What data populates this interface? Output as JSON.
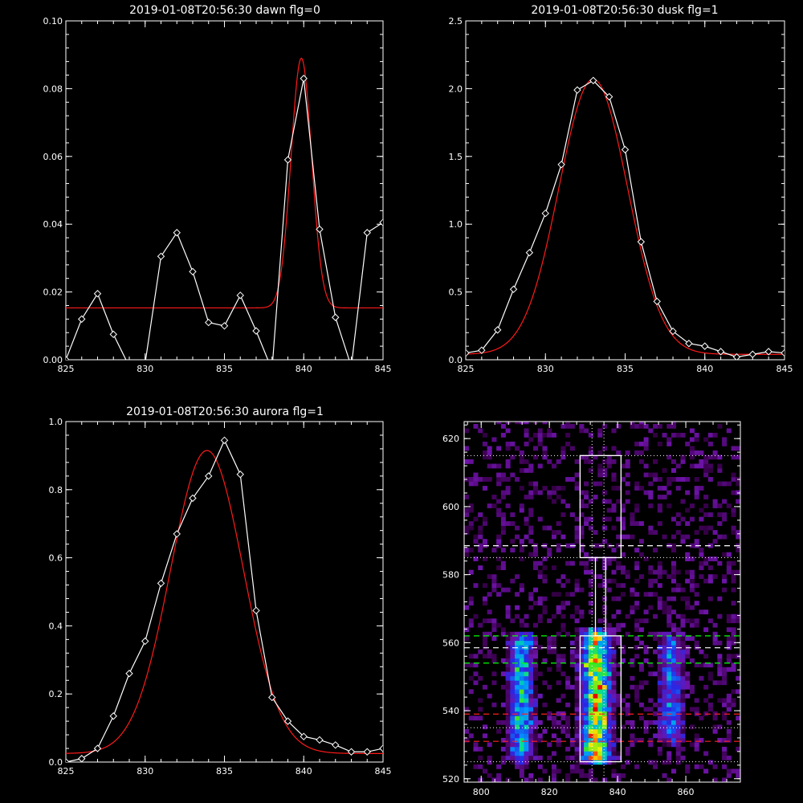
{
  "chart_data": [
    {
      "id": "dawn",
      "type": "line",
      "title": "2019-01-08T20:56:30 dawn flg=0",
      "xlim": [
        825,
        845
      ],
      "ylim": [
        0,
        0.1
      ],
      "xticks": [
        825,
        830,
        835,
        840,
        845
      ],
      "xticklabels": [
        "825",
        "830",
        "835",
        "840",
        "845"
      ],
      "yticks": [
        0,
        0.02,
        0.04,
        0.06,
        0.08,
        0.1
      ],
      "yticklabels": [
        "0.00",
        "0.02",
        "0.04",
        "0.06",
        "0.08",
        "0.10"
      ],
      "series": [
        {
          "style": "white-diamonds",
          "x": [
            825,
            826,
            827,
            828,
            829,
            830,
            831,
            832,
            833,
            834,
            835,
            836,
            837,
            838,
            839,
            840,
            841,
            842,
            843,
            844,
            845
          ],
          "y": [
            0.0,
            0.012,
            0.0195,
            0.0075,
            -0.002,
            -0.001,
            0.0305,
            0.0375,
            0.026,
            0.011,
            0.01,
            0.019,
            0.0085,
            -0.003,
            0.059,
            0.083,
            0.0385,
            0.0125,
            -0.002,
            0.0375,
            0.0405
          ]
        },
        {
          "style": "red-gaussian-fit",
          "baseline": 0.0153,
          "amplitude": 0.0737,
          "center": 839.85,
          "sigma": 0.65
        }
      ]
    },
    {
      "id": "dusk",
      "type": "line",
      "title": "2019-01-08T20:56:30 dusk flg=1",
      "xlim": [
        825,
        845
      ],
      "ylim": [
        0,
        2.5
      ],
      "xticks": [
        825,
        830,
        835,
        840,
        845
      ],
      "xticklabels": [
        "825",
        "830",
        "835",
        "840",
        "845"
      ],
      "yticks": [
        0,
        0.5,
        1.0,
        1.5,
        2.0,
        2.5
      ],
      "yticklabels": [
        "0.0",
        "0.5",
        "1.0",
        "1.5",
        "2.0",
        "2.5"
      ],
      "series": [
        {
          "style": "white-diamonds",
          "x": [
            825,
            826,
            827,
            828,
            829,
            830,
            831,
            832,
            833,
            834,
            835,
            836,
            837,
            838,
            839,
            840,
            841,
            842,
            843,
            844,
            845
          ],
          "y": [
            0.05,
            0.07,
            0.22,
            0.52,
            0.79,
            1.08,
            1.44,
            1.99,
            2.06,
            1.94,
            1.55,
            0.87,
            0.43,
            0.21,
            0.12,
            0.1,
            0.06,
            0.02,
            0.04,
            0.06,
            0.05
          ]
        },
        {
          "style": "red-gaussian-fit",
          "baseline": 0.04,
          "amplitude": 2.03,
          "center": 833.0,
          "sigma": 2.15
        }
      ]
    },
    {
      "id": "aurora",
      "type": "line",
      "title": "2019-01-08T20:56:30 aurora flg=1",
      "xlim": [
        825,
        845
      ],
      "ylim": [
        0,
        1.0
      ],
      "xticks": [
        825,
        830,
        835,
        840,
        845
      ],
      "xticklabels": [
        "825",
        "830",
        "835",
        "840",
        "845"
      ],
      "yticks": [
        0,
        0.2,
        0.4,
        0.6,
        0.8,
        1.0
      ],
      "yticklabels": [
        "0.0",
        "0.2",
        "0.4",
        "0.6",
        "0.8",
        "1.0"
      ],
      "series": [
        {
          "style": "white-diamonds",
          "x": [
            825,
            826,
            827,
            828,
            829,
            830,
            831,
            832,
            833,
            834,
            835,
            836,
            837,
            838,
            839,
            840,
            841,
            842,
            843,
            844,
            845
          ],
          "y": [
            0.0,
            0.01,
            0.04,
            0.135,
            0.26,
            0.355,
            0.525,
            0.67,
            0.775,
            0.84,
            0.945,
            0.845,
            0.445,
            0.19,
            0.12,
            0.075,
            0.065,
            0.05,
            0.03,
            0.03,
            0.04
          ]
        },
        {
          "style": "red-gaussian-fit",
          "baseline": 0.025,
          "amplitude": 0.89,
          "center": 833.9,
          "sigma": 2.3
        }
      ]
    },
    {
      "id": "spectrogram",
      "type": "heatmap",
      "title": "",
      "xlim": [
        795,
        876
      ],
      "ylim": [
        519,
        625
      ],
      "xticks": [
        800,
        820,
        840,
        860
      ],
      "xticklabels": [
        "800",
        "820",
        "840",
        "860"
      ],
      "yticks": [
        520,
        540,
        560,
        580,
        600,
        620
      ],
      "yticklabels": [
        "520",
        "540",
        "560",
        "580",
        "600",
        "620"
      ],
      "colormap": "rainbow-on-black",
      "emission_bands": [
        {
          "x_center": 811,
          "x_width": 4,
          "y_from": 525,
          "y_to": 562,
          "peak": 0.65
        },
        {
          "x_center": 833,
          "x_width": 5,
          "y_from": 524,
          "y_to": 563,
          "peak": 1.0
        },
        {
          "x_center": 855,
          "x_width": 4,
          "y_from": 530,
          "y_to": 561,
          "peak": 0.45
        }
      ],
      "boxes": [
        {
          "x1": 829,
          "x2": 841,
          "y1": 585,
          "y2": 615
        },
        {
          "x1": 833.5,
          "x2": 836.5,
          "y1": 562,
          "y2": 585
        },
        {
          "x1": 829,
          "x2": 841,
          "y1": 525,
          "y2": 562
        }
      ],
      "dotted_vertical_lines": [
        832.5,
        836
      ],
      "dotted_horizontal_lines": [
        615,
        585,
        525,
        535
      ],
      "dashed_lines": [
        {
          "y": 588.5,
          "color": "#ffffff"
        },
        {
          "y": 558.5,
          "color": "#ffffff"
        },
        {
          "y": 562,
          "color": "#00ff00"
        },
        {
          "y": 554,
          "color": "#00ff00"
        },
        {
          "y": 539,
          "color": "#ff2020"
        },
        {
          "y": 531,
          "color": "#ff2020"
        }
      ]
    }
  ]
}
